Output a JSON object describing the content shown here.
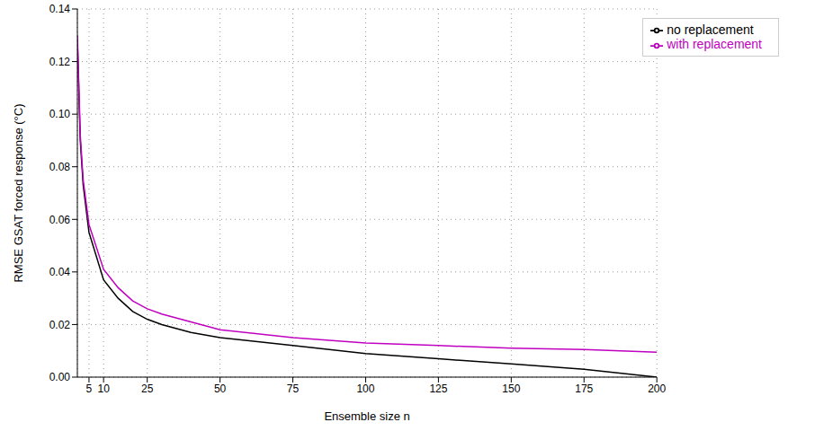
{
  "chart_data": {
    "type": "line",
    "x_label": "Ensemble size n",
    "y_label": "RMSE GSAT forced response (°C)",
    "x": [
      1,
      2,
      3,
      5,
      10,
      15,
      20,
      25,
      30,
      40,
      50,
      75,
      100,
      125,
      150,
      175,
      200
    ],
    "series": [
      {
        "name": "no replacement",
        "color": "#000000",
        "line_style": "solid",
        "values": [
          0.128,
          0.09,
          0.073,
          0.055,
          0.037,
          0.03,
          0.025,
          0.022,
          0.02,
          0.017,
          0.015,
          0.012,
          0.009,
          0.007,
          0.005,
          0.003,
          0.0
        ]
      },
      {
        "name": "with replacement",
        "color": "#c000c0",
        "line_style": "solid",
        "values": [
          0.13,
          0.092,
          0.075,
          0.058,
          0.041,
          0.034,
          0.029,
          0.026,
          0.024,
          0.021,
          0.018,
          0.015,
          0.013,
          0.012,
          0.011,
          0.0105,
          0.0095
        ]
      }
    ],
    "xlim": [
      1,
      200
    ],
    "xticks": [
      5,
      10,
      25,
      50,
      75,
      100,
      125,
      150,
      175,
      200
    ],
    "ylim": [
      0,
      0.14
    ],
    "yticks": [
      {
        "value": 0,
        "label": "0.00"
      },
      0.02,
      0.04,
      0.06,
      0.08,
      {
        "value": 0.1,
        "label": "0.10"
      },
      0.12,
      0.14
    ],
    "grid": true,
    "legend": "top-right"
  }
}
